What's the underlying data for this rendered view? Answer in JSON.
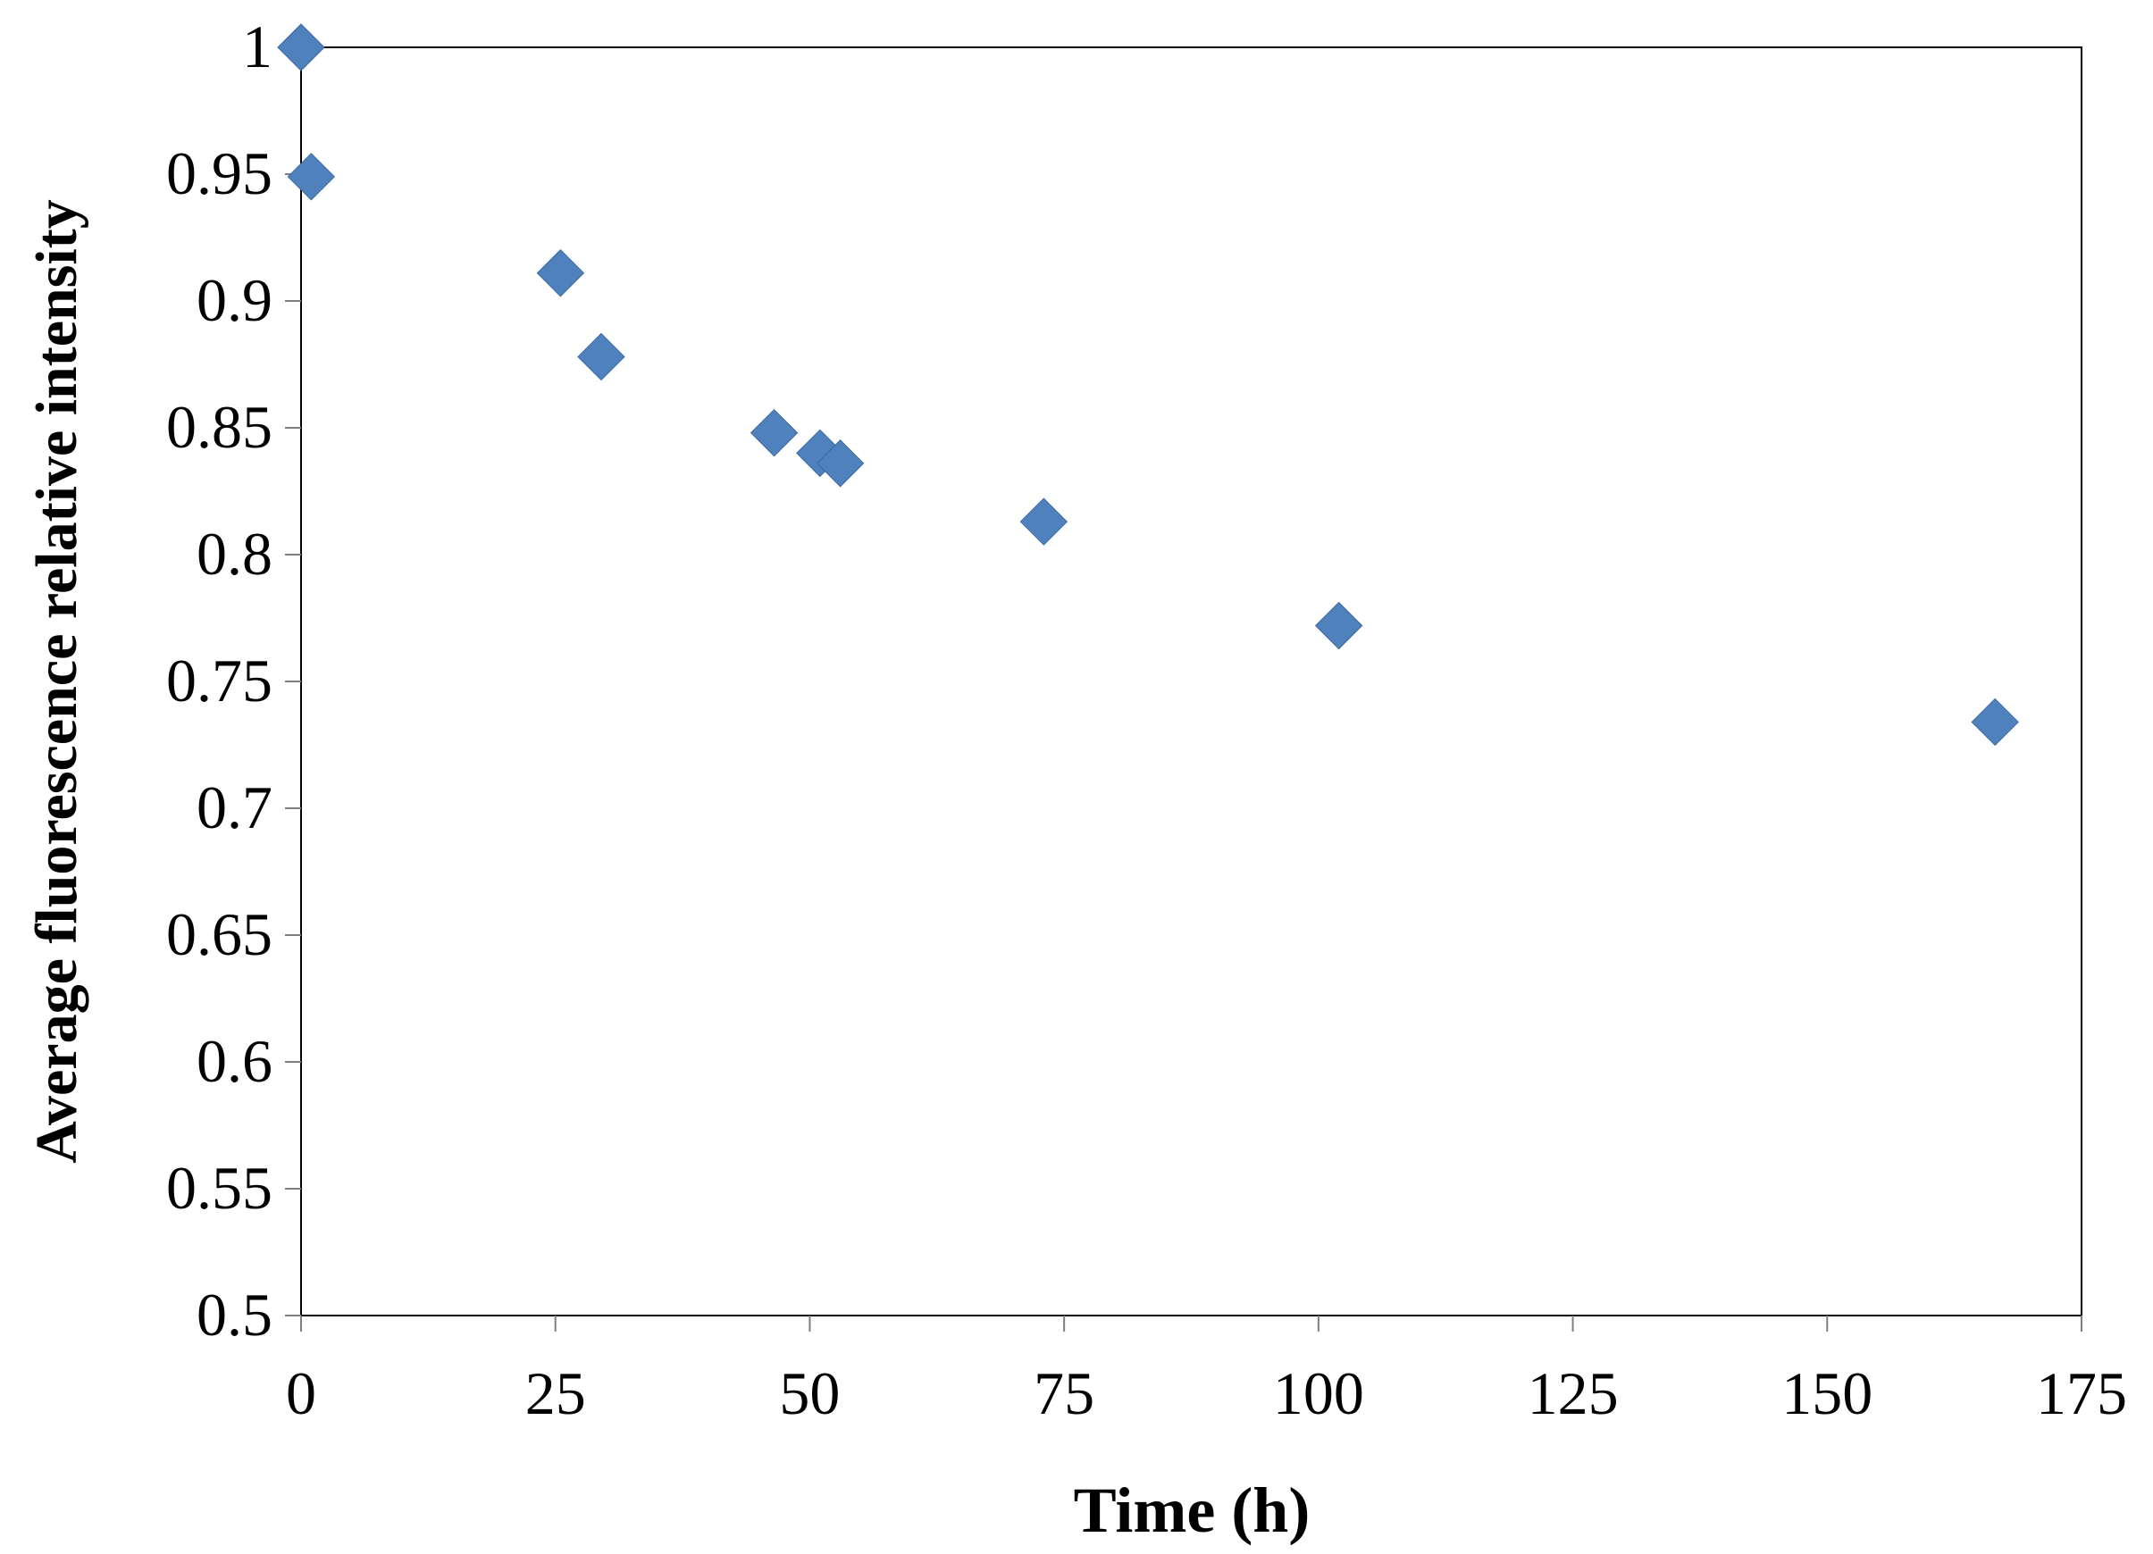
{
  "chart_data": {
    "type": "scatter",
    "title": "",
    "xlabel": "Time (h)",
    "ylabel": "Average fluorescence relative intensity",
    "xlim": [
      0,
      175
    ],
    "ylim": [
      0.5,
      1
    ],
    "x_ticks": [
      "0",
      "25",
      "50",
      "75",
      "100",
      "125",
      "150",
      "175"
    ],
    "y_ticks": [
      "0.5",
      "0.55",
      "0.6",
      "0.65",
      "0.7",
      "0.75",
      "0.8",
      "0.85",
      "0.9",
      "0.95",
      "1"
    ],
    "grid": false,
    "marker": "diamond",
    "marker_color": "#4f81bd",
    "series": [
      {
        "x": [
          0,
          1,
          25.5,
          29.5,
          46.5,
          51,
          53,
          73,
          102,
          166.5
        ],
        "y": [
          1.0,
          0.949,
          0.911,
          0.878,
          0.848,
          0.84,
          0.836,
          0.813,
          0.772,
          0.734
        ]
      }
    ]
  }
}
